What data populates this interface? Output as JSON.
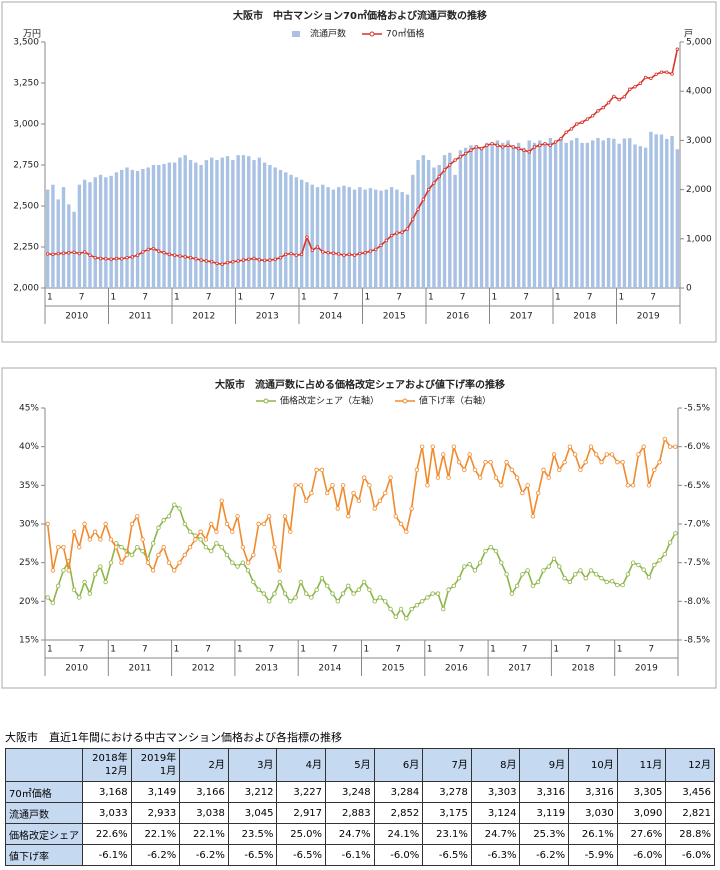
{
  "chart_data": [
    {
      "type": "combo",
      "title": "大阪市　中古マンション70㎡価格および流通戸数の推移",
      "y_unit": "万円",
      "y2_unit": "戸",
      "categories": [
        "1",
        null,
        null,
        null,
        null,
        null,
        "7",
        null,
        null,
        null,
        null,
        null,
        "1",
        null,
        null,
        null,
        null,
        null,
        "7",
        null,
        null,
        null,
        null,
        null,
        "1",
        null,
        null,
        null,
        null,
        null,
        "7",
        null,
        null,
        null,
        null,
        null,
        "1",
        null,
        null,
        null,
        null,
        null,
        "7",
        null,
        null,
        null,
        null,
        null,
        "1",
        null,
        null,
        null,
        null,
        null,
        "7",
        null,
        null,
        null,
        null,
        null,
        "1",
        null,
        null,
        null,
        null,
        null,
        "7",
        null,
        null,
        null,
        null,
        null,
        "1",
        null,
        null,
        null,
        null,
        null,
        "7",
        null,
        null,
        null,
        null,
        null,
        "1",
        null,
        null,
        null,
        null,
        null,
        "7",
        null,
        null,
        null,
        null,
        null,
        "1",
        null,
        null,
        null,
        null,
        null,
        "7",
        null,
        null,
        null,
        null,
        null,
        "1",
        null,
        null,
        null,
        null,
        null,
        "7",
        null,
        null,
        null,
        null,
        null
      ],
      "years": [
        "2010",
        "2011",
        "2012",
        "2013",
        "2014",
        "2015",
        "2016",
        "2017",
        "2018",
        "2019"
      ],
      "ylim": [
        2000,
        3500
      ],
      "yticks": [
        {
          "value": 2000,
          "label": "2,000"
        },
        {
          "value": 2250,
          "label": "2,250"
        },
        {
          "value": 2500,
          "label": "2,500"
        },
        {
          "value": 2750,
          "label": "2,750"
        },
        {
          "value": 3000,
          "label": "3,000"
        },
        {
          "value": 3250,
          "label": "3,250"
        },
        {
          "value": 3500,
          "label": "3,500"
        }
      ],
      "y2lim": [
        0,
        5000
      ],
      "y2ticks": [
        0,
        {
          "value": 1000,
          "label": "1,000"
        },
        {
          "value": 2000,
          "label": "2,000"
        },
        {
          "value": 3000,
          "label": "3,000"
        },
        {
          "value": 4000,
          "label": "4,000"
        },
        {
          "value": 5000,
          "label": "5,000"
        }
      ],
      "series": [
        {
          "name": "流通戸数",
          "type": "bar",
          "axis": "y2",
          "color": "#a9c1e3",
          "values": [
            2000,
            2100,
            1800,
            2050,
            1700,
            1550,
            2100,
            2200,
            2150,
            2250,
            2300,
            2250,
            2280,
            2350,
            2400,
            2450,
            2400,
            2380,
            2420,
            2450,
            2500,
            2500,
            2520,
            2550,
            2550,
            2650,
            2700,
            2600,
            2550,
            2500,
            2600,
            2650,
            2600,
            2650,
            2680,
            2600,
            2700,
            2700,
            2680,
            2600,
            2650,
            2550,
            2500,
            2450,
            2400,
            2350,
            2300,
            2250,
            2200,
            2150,
            2100,
            2050,
            2100,
            2050,
            2000,
            2050,
            2080,
            2050,
            2000,
            2050,
            2000,
            2030,
            2000,
            1980,
            2000,
            2050,
            2000,
            1950,
            1900,
            2300,
            2600,
            2700,
            2600,
            2450,
            2500,
            2700,
            2750,
            2300,
            2800,
            2850,
            2900,
            2900,
            2850,
            2950,
            2900,
            3000,
            2950,
            3000,
            2900,
            2950,
            2850,
            3000,
            2950,
            3000,
            2950,
            3050,
            3000,
            3050,
            2950,
            3000,
            3050,
            2950,
            2950,
            3000,
            3050,
            3000,
            3050,
            3033,
            2933,
            3038,
            3045,
            2917,
            2883,
            2852,
            3175,
            3124,
            3119,
            3030,
            3090,
            2821
          ]
        },
        {
          "name": "70㎡価格",
          "type": "line",
          "color": "#d9342b",
          "values": [
            2208,
            2205,
            2210,
            2212,
            2215,
            2218,
            2210,
            2220,
            2200,
            2185,
            2180,
            2178,
            2175,
            2180,
            2178,
            2185,
            2190,
            2200,
            2220,
            2235,
            2240,
            2225,
            2215,
            2205,
            2200,
            2195,
            2190,
            2185,
            2178,
            2170,
            2165,
            2160,
            2150,
            2145,
            2155,
            2160,
            2165,
            2170,
            2175,
            2180,
            2172,
            2168,
            2170,
            2175,
            2185,
            2205,
            2210,
            2200,
            2205,
            2310,
            2230,
            2250,
            2220,
            2215,
            2212,
            2208,
            2200,
            2205,
            2200,
            2210,
            2215,
            2225,
            2235,
            2260,
            2290,
            2320,
            2335,
            2340,
            2360,
            2420,
            2480,
            2540,
            2600,
            2640,
            2680,
            2720,
            2750,
            2780,
            2800,
            2820,
            2840,
            2860,
            2850,
            2870,
            2880,
            2870,
            2860,
            2870,
            2860,
            2850,
            2840,
            2830,
            2860,
            2870,
            2880,
            2870,
            2890,
            2910,
            2950,
            2970,
            3000,
            3010,
            3030,
            3050,
            3080,
            3100,
            3130,
            3168,
            3149,
            3166,
            3212,
            3227,
            3248,
            3284,
            3278,
            3303,
            3316,
            3316,
            3305,
            3456
          ]
        }
      ]
    },
    {
      "type": "line",
      "title": "大阪市　流通戸数に占める価格改定シェアおよび値下げ率の推移",
      "categories": [
        "1",
        null,
        null,
        null,
        null,
        null,
        "7",
        null,
        null,
        null,
        null,
        null,
        "1",
        null,
        null,
        null,
        null,
        null,
        "7",
        null,
        null,
        null,
        null,
        null,
        "1",
        null,
        null,
        null,
        null,
        null,
        "7",
        null,
        null,
        null,
        null,
        null,
        "1",
        null,
        null,
        null,
        null,
        null,
        "7",
        null,
        null,
        null,
        null,
        null,
        "1",
        null,
        null,
        null,
        null,
        null,
        "7",
        null,
        null,
        null,
        null,
        null,
        "1",
        null,
        null,
        null,
        null,
        null,
        "7",
        null,
        null,
        null,
        null,
        null,
        "1",
        null,
        null,
        null,
        null,
        null,
        "7",
        null,
        null,
        null,
        null,
        null,
        "1",
        null,
        null,
        null,
        null,
        null,
        "7",
        null,
        null,
        null,
        null,
        null,
        "1",
        null,
        null,
        null,
        null,
        null,
        "7",
        null,
        null,
        null,
        null,
        null,
        "1",
        null,
        null,
        null,
        null,
        null,
        "7",
        null,
        null,
        null,
        null,
        null
      ],
      "years": [
        "2010",
        "2011",
        "2012",
        "2013",
        "2014",
        "2015",
        "2016",
        "2017",
        "2018",
        "2019"
      ],
      "ylim": [
        15,
        45
      ],
      "yticks": [
        {
          "value": 15,
          "label": "15%"
        },
        {
          "value": 20,
          "label": "20%"
        },
        {
          "value": 25,
          "label": "25%"
        },
        {
          "value": 30,
          "label": "30%"
        },
        {
          "value": 35,
          "label": "35%"
        },
        {
          "value": 40,
          "label": "40%"
        },
        {
          "value": 45,
          "label": "45%"
        }
      ],
      "y2lim": [
        -8.5,
        -5.5
      ],
      "y2ticks": [
        {
          "value": -8.5,
          "label": "-8.5%"
        },
        {
          "value": -8.0,
          "label": "-8.0%"
        },
        {
          "value": -7.5,
          "label": "-7.5%"
        },
        {
          "value": -7.0,
          "label": "-7.0%"
        },
        {
          "value": -6.5,
          "label": "-6.5%"
        },
        {
          "value": -6.0,
          "label": "-6.0%"
        },
        {
          "value": -5.5,
          "label": "-5.5%"
        }
      ],
      "series": [
        {
          "name": "価格改定シェア（左軸）",
          "type": "line",
          "color": "#8db548",
          "values": [
            20.5,
            19.8,
            22,
            24,
            25.2,
            21.5,
            20.5,
            22.5,
            21,
            23.5,
            24.5,
            22.5,
            25,
            27.5,
            27,
            26.5,
            26,
            27,
            26.5,
            25.5,
            27.5,
            29.5,
            30.5,
            31,
            32.5,
            32,
            30,
            29,
            28.5,
            28,
            27,
            26.5,
            27.5,
            27,
            26,
            25,
            24.5,
            25,
            24,
            22.5,
            21.5,
            21,
            20,
            21,
            22.5,
            21,
            20,
            20.5,
            22.5,
            21,
            20.5,
            21.5,
            23,
            22,
            21,
            20,
            21,
            22,
            21,
            21.5,
            22.5,
            21.5,
            20,
            20.5,
            20,
            19,
            18,
            19,
            17.8,
            19,
            19.5,
            20,
            20.5,
            21,
            21,
            19,
            21.5,
            22,
            23,
            24.5,
            24.8,
            24,
            25,
            26.5,
            27,
            26.5,
            25,
            23.5,
            21,
            22,
            23.5,
            24,
            22,
            22.5,
            24,
            24.5,
            25.5,
            24.5,
            23,
            22.5,
            23.5,
            24,
            23,
            24,
            23.5,
            23,
            22.5,
            22.6,
            22.1,
            22.1,
            23.5,
            25.0,
            24.7,
            24.1,
            23.1,
            24.7,
            25.3,
            26.1,
            27.6,
            28.8
          ]
        },
        {
          "name": "値下げ率（右軸）",
          "type": "line",
          "axis": "y2",
          "color": "#f08a2c",
          "values": [
            -7.0,
            -7.6,
            -7.3,
            -7.3,
            -7.6,
            -7.1,
            -7.3,
            -7.0,
            -7.2,
            -7.1,
            -7.2,
            -7.0,
            -7.2,
            -7.3,
            -7.5,
            -7.4,
            -7.0,
            -6.9,
            -7.2,
            -7.5,
            -7.6,
            -7.4,
            -7.3,
            -7.5,
            -7.6,
            -7.5,
            -7.4,
            -7.3,
            -7.2,
            -7.1,
            -7.2,
            -7.0,
            -7.1,
            -6.7,
            -7.0,
            -7.1,
            -6.9,
            -7.3,
            -7.5,
            -7.4,
            -7.0,
            -7.0,
            -6.9,
            -7.3,
            -7.6,
            -6.9,
            -7.1,
            -6.5,
            -6.5,
            -6.7,
            -6.6,
            -6.3,
            -6.3,
            -6.6,
            -6.5,
            -6.8,
            -6.5,
            -6.9,
            -6.6,
            -6.7,
            -6.4,
            -6.5,
            -6.8,
            -6.7,
            -6.6,
            -6.4,
            -6.9,
            -7.0,
            -7.1,
            -6.8,
            -6.3,
            -6.0,
            -6.5,
            -6.0,
            -6.4,
            -6.1,
            -6.4,
            -6.0,
            -6.2,
            -6.3,
            -6.1,
            -6.3,
            -6.4,
            -6.2,
            -6.2,
            -6.4,
            -6.5,
            -6.2,
            -6.3,
            -6.4,
            -6.6,
            -6.5,
            -6.9,
            -6.6,
            -6.3,
            -6.4,
            -6.1,
            -6.3,
            -6.2,
            -6.0,
            -6.1,
            -6.3,
            -6.2,
            -6.0,
            -6.1,
            -6.2,
            -6.1,
            -6.1,
            -6.2,
            -6.2,
            -6.5,
            -6.5,
            -6.1,
            -6.0,
            -6.5,
            -6.3,
            -6.2,
            -5.9,
            -6.0,
            -6.0
          ]
        }
      ]
    }
  ],
  "table": {
    "title": "大阪市　直近1年間における中古マンション価格および各指標の推移",
    "columns": [
      {
        "year": "2018年",
        "month": "12月"
      },
      {
        "year": "2019年",
        "month": "1月"
      },
      {
        "month": "2月"
      },
      {
        "month": "3月"
      },
      {
        "month": "4月"
      },
      {
        "month": "5月"
      },
      {
        "month": "6月"
      },
      {
        "month": "7月"
      },
      {
        "month": "8月"
      },
      {
        "month": "9月"
      },
      {
        "month": "10月"
      },
      {
        "month": "11月"
      },
      {
        "month": "12月"
      }
    ],
    "rows": [
      {
        "label": "70㎡価格",
        "cells": [
          "3,168",
          "3,149",
          "3,166",
          "3,212",
          "3,227",
          "3,248",
          "3,284",
          "3,278",
          "3,303",
          "3,316",
          "3,316",
          "3,305",
          "3,456"
        ]
      },
      {
        "label": "流通戸数",
        "cells": [
          "3,033",
          "2,933",
          "3,038",
          "3,045",
          "2,917",
          "2,883",
          "2,852",
          "3,175",
          "3,124",
          "3,119",
          "3,030",
          "3,090",
          "2,821"
        ]
      },
      {
        "label": "価格改定シェア",
        "cells": [
          "22.6%",
          "22.1%",
          "22.1%",
          "23.5%",
          "25.0%",
          "24.7%",
          "24.1%",
          "23.1%",
          "24.7%",
          "25.3%",
          "26.1%",
          "27.6%",
          "28.8%"
        ]
      },
      {
        "label": "値下げ率",
        "cells": [
          "-6.1%",
          "-6.2%",
          "-6.2%",
          "-6.5%",
          "-6.5%",
          "-6.1%",
          "-6.0%",
          "-6.5%",
          "-6.3%",
          "-6.2%",
          "-5.9%",
          "-6.0%",
          "-6.0%"
        ]
      }
    ]
  }
}
